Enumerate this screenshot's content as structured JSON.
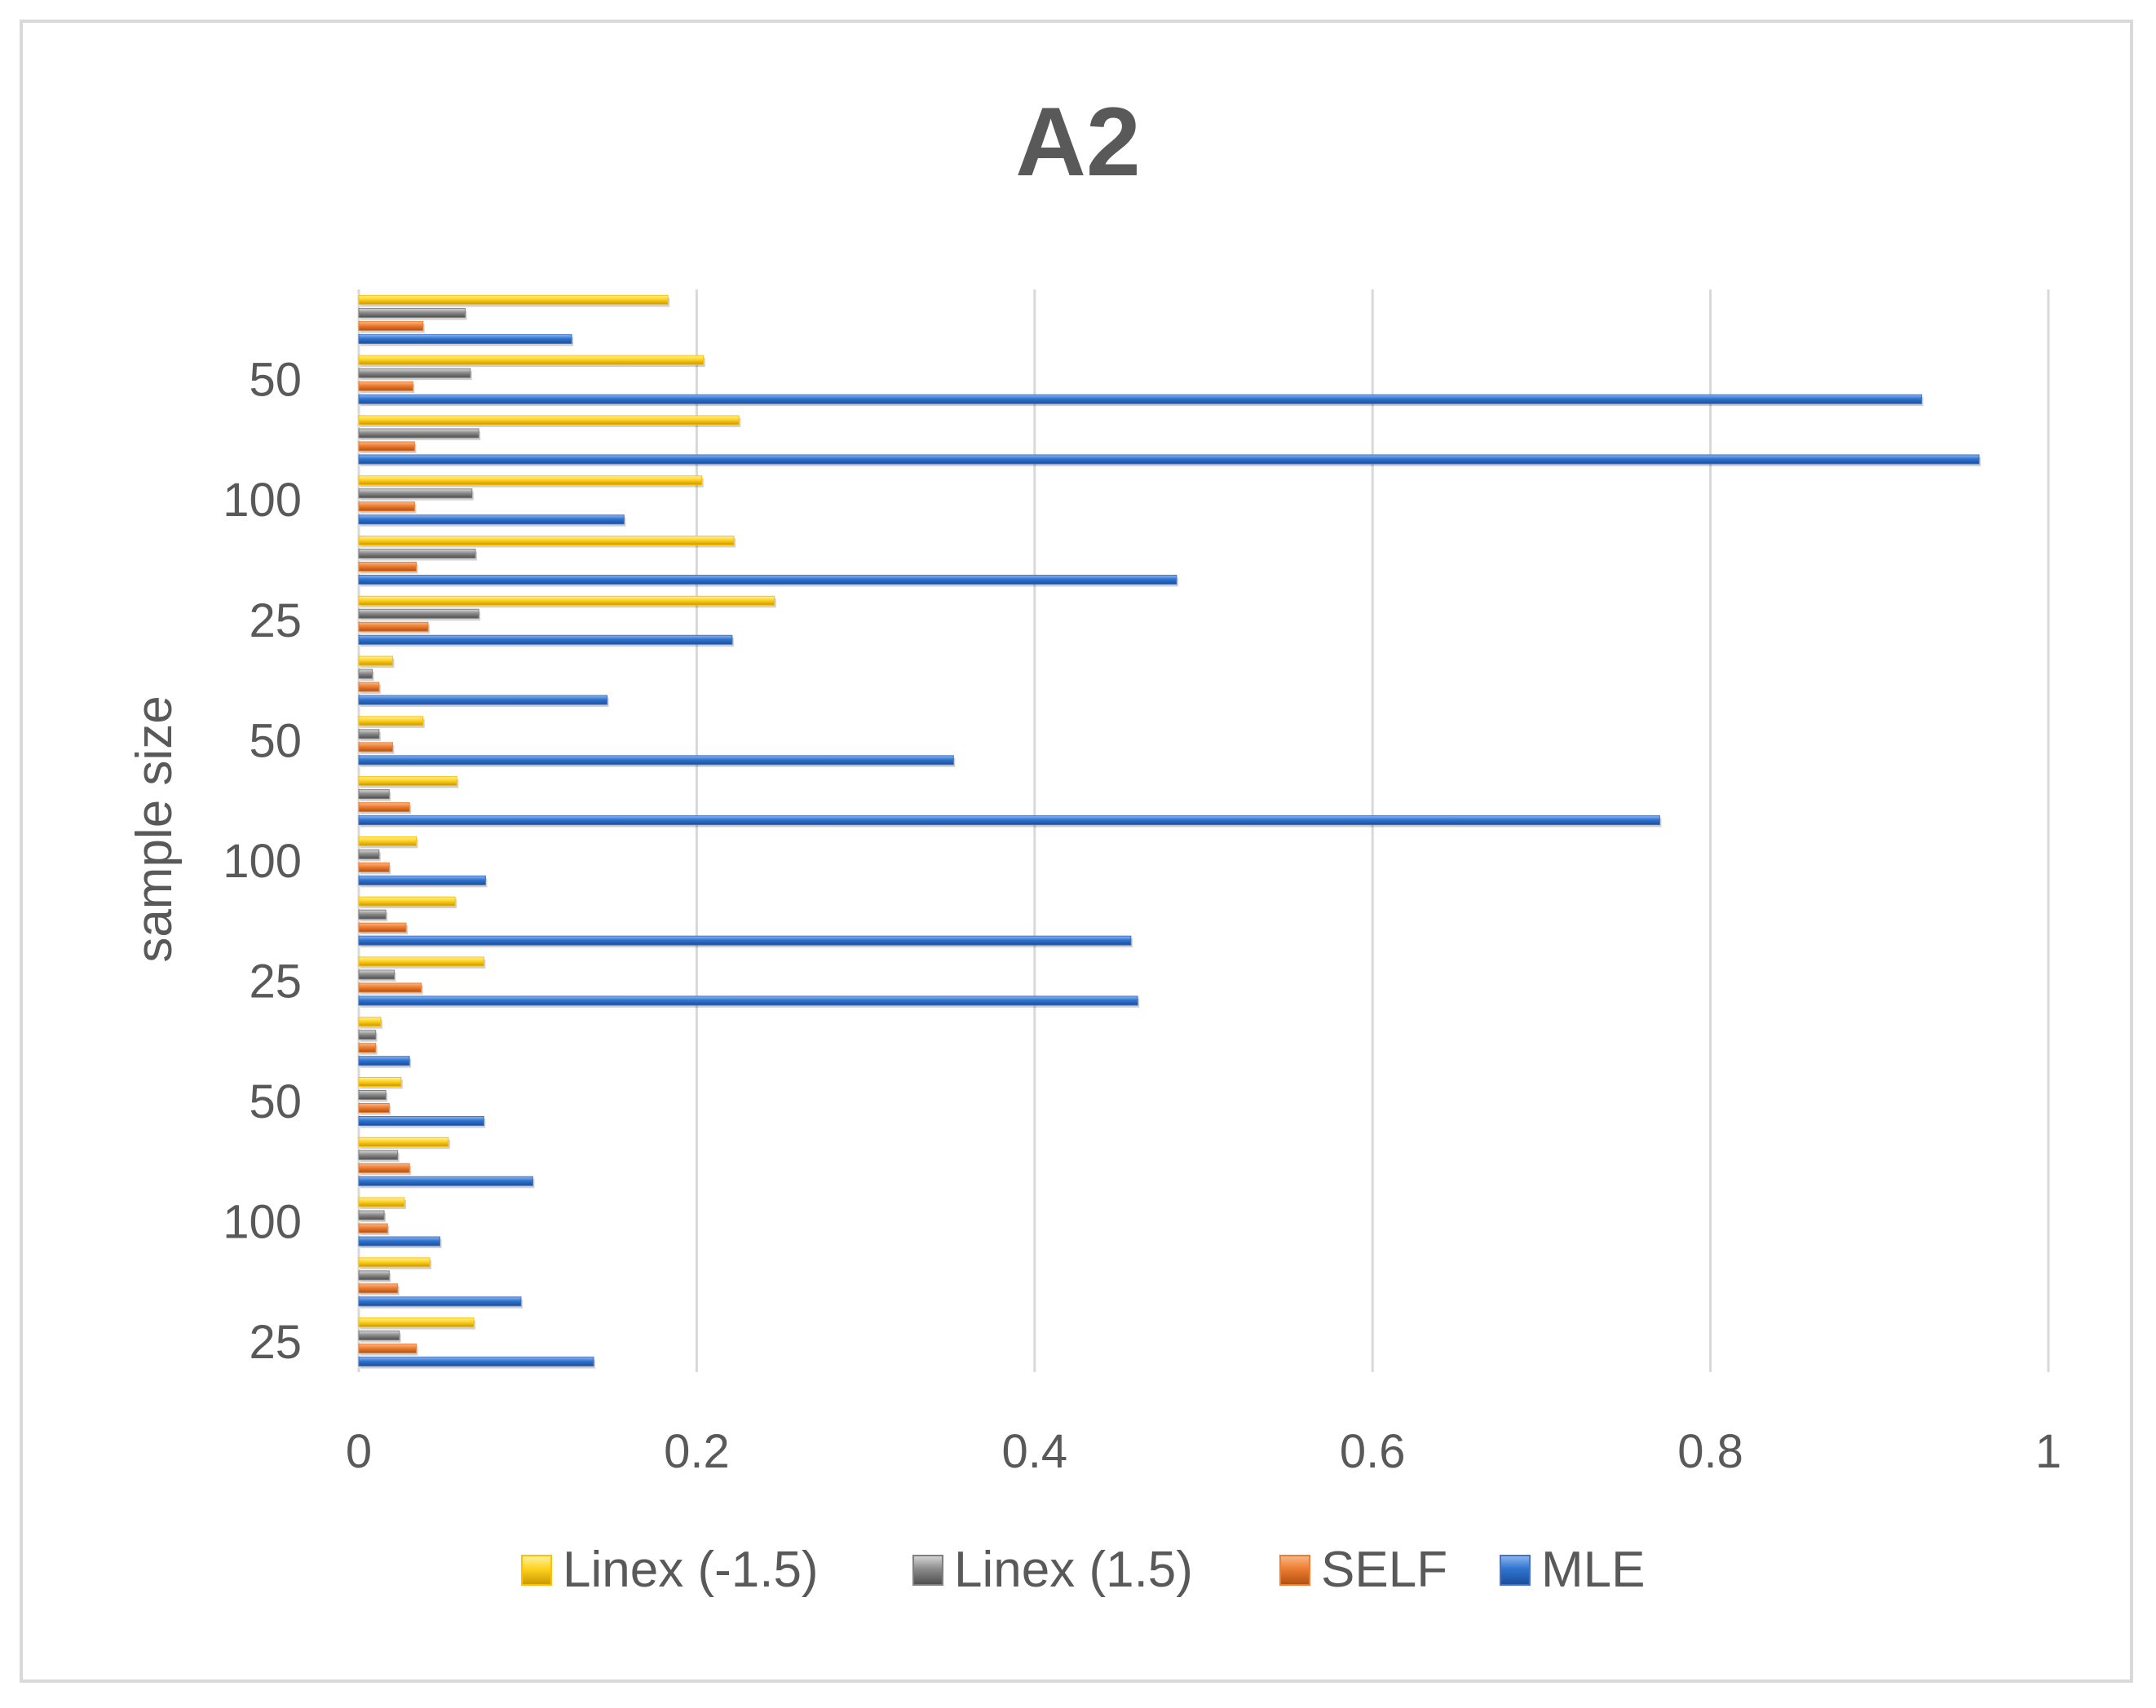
{
  "chart_data": {
    "type": "bar",
    "orientation": "horizontal",
    "title": "A2",
    "xlabel": "",
    "ylabel": "sample size",
    "xlim": [
      0,
      1
    ],
    "xticks": [
      0,
      0.2,
      0.4,
      0.6,
      0.8,
      1
    ],
    "xtick_labels": [
      "0",
      "0.2",
      "0.4",
      "0.6",
      "0.8",
      "1"
    ],
    "grid": "vertical",
    "legend_position": "bottom",
    "categories_bottom_to_top": [
      "25",
      "",
      "100",
      "",
      "50",
      "",
      "25",
      "",
      "100",
      "",
      "50",
      "",
      "25",
      "",
      "100",
      "",
      "50",
      ""
    ],
    "series": [
      {
        "name": "Linex (-1.5)",
        "color": "#ffc000",
        "values": [
          0.068,
          0.042,
          0.027,
          0.053,
          0.025,
          0.013,
          0.074,
          0.057,
          0.034,
          0.058,
          0.038,
          0.02,
          0.246,
          0.222,
          0.203,
          0.225,
          0.204,
          0.183
        ]
      },
      {
        "name": "Linex (1.5)",
        "color": "#7f7f7f",
        "values": [
          0.024,
          0.018,
          0.015,
          0.023,
          0.016,
          0.01,
          0.021,
          0.016,
          0.012,
          0.018,
          0.012,
          0.008,
          0.071,
          0.069,
          0.067,
          0.071,
          0.066,
          0.063
        ]
      },
      {
        "name": "SELF",
        "color": "#ed7d31",
        "values": [
          0.034,
          0.023,
          0.017,
          0.03,
          0.018,
          0.01,
          0.037,
          0.028,
          0.018,
          0.03,
          0.02,
          0.012,
          0.041,
          0.034,
          0.033,
          0.033,
          0.032,
          0.038
        ]
      },
      {
        "name": "MLE",
        "color": "#4472c4",
        "values": [
          0.139,
          0.096,
          0.048,
          0.103,
          0.074,
          0.03,
          0.461,
          0.457,
          0.075,
          0.77,
          0.352,
          0.147,
          0.221,
          0.484,
          0.157,
          0.959,
          0.925,
          0.126
        ]
      }
    ]
  }
}
